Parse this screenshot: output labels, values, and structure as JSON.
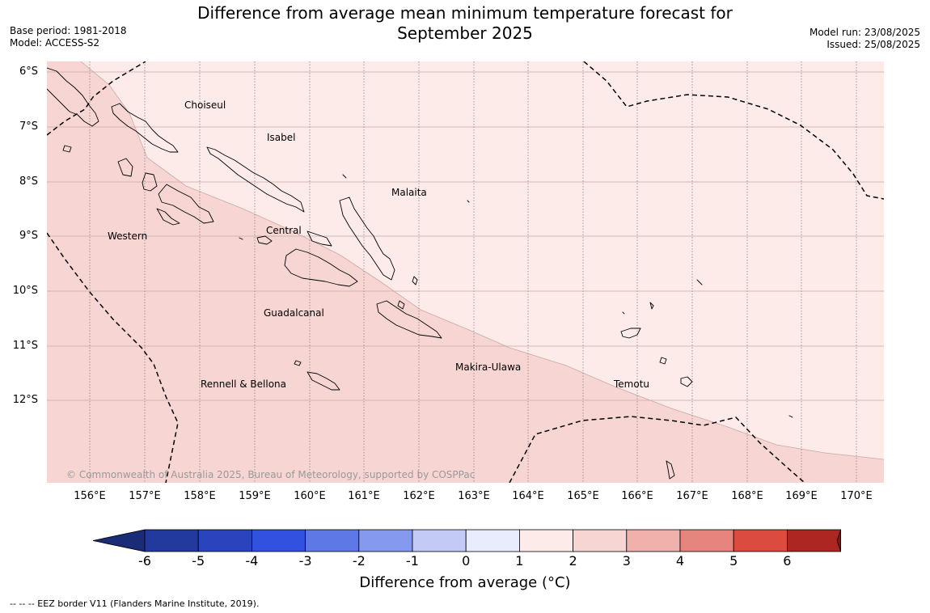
{
  "header": {
    "title_line1": "Difference from average mean minimum temperature forecast for",
    "title_line2": "September 2025",
    "base_period": "Base period: 1981-2018",
    "model": "Model: ACCESS-S2",
    "model_run": "Model run: 23/08/2025",
    "issued": "Issued: 25/08/2025"
  },
  "map": {
    "lat_labels": [
      "6°S",
      "7°S",
      "8°S",
      "9°S",
      "10°S",
      "11°S",
      "12°S"
    ],
    "lon_labels": [
      "156°E",
      "157°E",
      "158°E",
      "159°E",
      "160°E",
      "161°E",
      "162°E",
      "163°E",
      "164°E",
      "165°E",
      "166°E",
      "167°E",
      "168°E",
      "169°E",
      "170°E"
    ],
    "regions": {
      "choiseul": "Choiseul",
      "isabel": "Isabel",
      "malaita": "Malaita",
      "western": "Western",
      "central": "Central",
      "guadalcanal": "Guadalcanal",
      "makira_ulawa": "Makira-Ulawa",
      "rennell_bellona": "Rennell & Bellona",
      "temotu": "Temotu"
    },
    "copyright": "© Commonwealth of Australia 2025, Bureau of Meteorology, supported by COSPPac",
    "fill_colors": {
      "zero_to_one": "#fcebe9",
      "one_to_two": "#f6d5d2"
    }
  },
  "colorbar": {
    "ticks": [
      "-6",
      "-5",
      "-4",
      "-3",
      "-2",
      "-1",
      "0",
      "1",
      "2",
      "3",
      "4",
      "5",
      "6"
    ],
    "colors": [
      "#223a9e",
      "#2a44bd",
      "#3251df",
      "#5e78e6",
      "#8599ee",
      "#c3caf5",
      "#e9ecfc",
      "#fcebe9",
      "#f6d5d2",
      "#f0b0ac",
      "#e6857e",
      "#dc4b3f",
      "#ad2722"
    ],
    "under_color": "#1a2b78",
    "over_color": "#761c17",
    "label": "Difference from average (°C)"
  },
  "footnote": "--  --  -- EEZ border V11 (Flanders Marine Institute, 2019)."
}
